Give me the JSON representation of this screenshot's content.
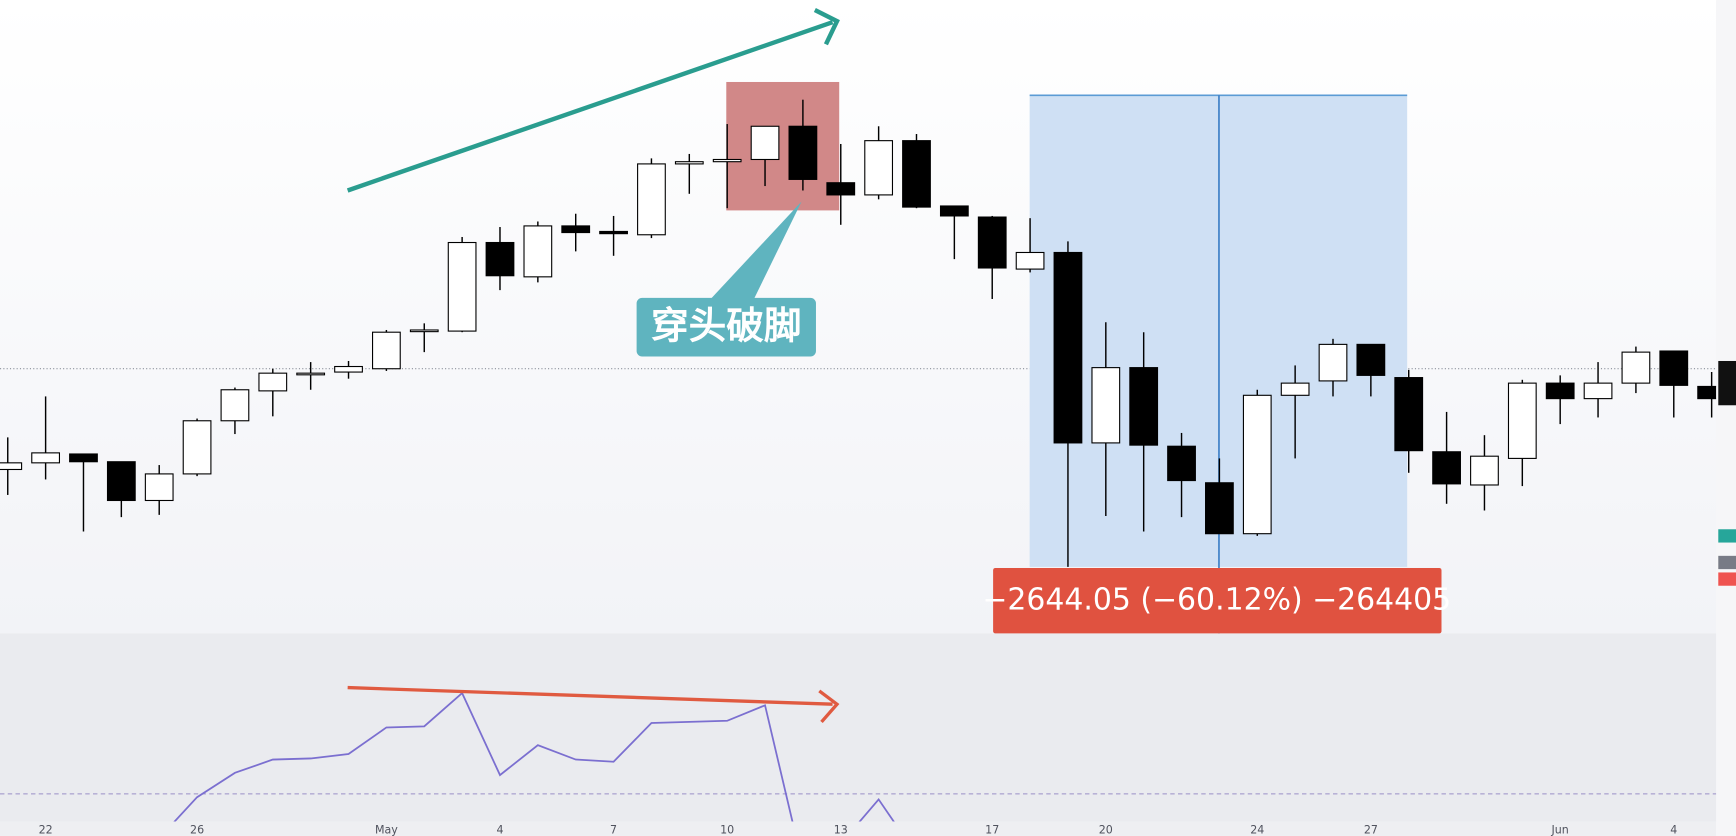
{
  "chart_data": {
    "type": "candlestick",
    "categories": [
      null,
      "22",
      null,
      null,
      null,
      "26",
      null,
      null,
      null,
      null,
      "May",
      null,
      null,
      "4",
      null,
      null,
      "7",
      null,
      null,
      "10",
      null,
      null,
      "13",
      null,
      null,
      null,
      "17",
      null,
      null,
      "20",
      null,
      null,
      null,
      "24",
      null,
      null,
      "27",
      null,
      null,
      null,
      null,
      "Jun",
      null,
      null,
      "4",
      null
    ],
    "ohlc": [
      [
        148,
        177,
        125,
        154
      ],
      [
        154,
        214,
        139,
        163
      ],
      [
        162,
        162,
        92,
        155
      ],
      [
        155,
        155,
        105,
        120
      ],
      [
        120,
        152,
        107,
        144
      ],
      [
        144,
        194,
        142,
        192
      ],
      [
        192,
        222,
        180,
        220
      ],
      [
        219,
        239,
        196,
        235
      ],
      [
        235,
        245,
        220,
        235
      ],
      [
        236,
        246,
        230,
        241
      ],
      [
        239,
        274,
        237,
        272
      ],
      [
        273,
        280,
        254,
        274
      ],
      [
        273,
        358,
        272,
        353
      ],
      [
        353,
        367,
        310,
        323
      ],
      [
        322,
        372,
        317,
        368
      ],
      [
        368,
        379,
        345,
        362
      ],
      [
        363,
        377,
        341,
        361
      ],
      [
        360,
        429,
        357,
        424
      ],
      [
        424,
        433,
        397,
        426
      ],
      [
        426,
        460,
        384,
        428
      ],
      [
        428,
        458,
        404,
        458
      ],
      [
        458,
        482,
        400,
        410
      ],
      [
        407,
        442,
        369,
        396
      ],
      [
        396,
        458,
        392,
        445
      ],
      [
        445,
        451,
        384,
        385
      ],
      [
        386,
        386,
        338,
        377
      ],
      [
        376,
        377,
        302,
        330
      ],
      [
        329,
        375,
        326,
        344
      ],
      [
        344,
        354,
        60,
        172
      ],
      [
        172,
        281,
        106,
        240
      ],
      [
        240,
        272,
        92,
        170
      ],
      [
        169,
        181,
        105,
        138
      ],
      [
        136,
        158,
        90,
        90
      ],
      [
        90,
        220,
        88,
        215
      ],
      [
        215,
        242,
        158,
        226
      ],
      [
        228,
        266,
        214,
        261
      ],
      [
        261,
        261,
        214,
        233
      ],
      [
        231,
        238,
        145,
        165
      ],
      [
        164,
        200,
        117,
        135
      ],
      [
        134,
        179,
        111,
        160
      ],
      [
        158,
        229,
        133,
        226
      ],
      [
        226,
        233,
        189,
        212
      ],
      [
        212,
        245,
        195,
        226
      ],
      [
        226,
        259,
        217,
        254
      ],
      [
        255,
        255,
        195,
        224
      ],
      [
        223,
        236,
        195,
        212
      ]
    ],
    "ylim": [
      0,
      572
    ],
    "up_color": "#ffffff",
    "down_color": "#000000",
    "indicator": {
      "type": "line",
      "color": "#7b6fd0",
      "ylim": [
        0,
        170
      ],
      "values": [
        null,
        null,
        null,
        null,
        -15,
        22,
        44,
        56,
        57,
        61,
        85,
        86,
        116,
        42,
        69,
        56,
        54,
        89,
        90,
        91,
        105,
        -40,
        -20,
        20,
        -30,
        null,
        null,
        null,
        null,
        null,
        null,
        null,
        null,
        null,
        null,
        null,
        null,
        null,
        null,
        null,
        null,
        null,
        null,
        null,
        null,
        null
      ]
    },
    "annotations": {
      "callout": "穿头破脚",
      "measure": "−2644.05 (−60.12%) −264405"
    }
  }
}
